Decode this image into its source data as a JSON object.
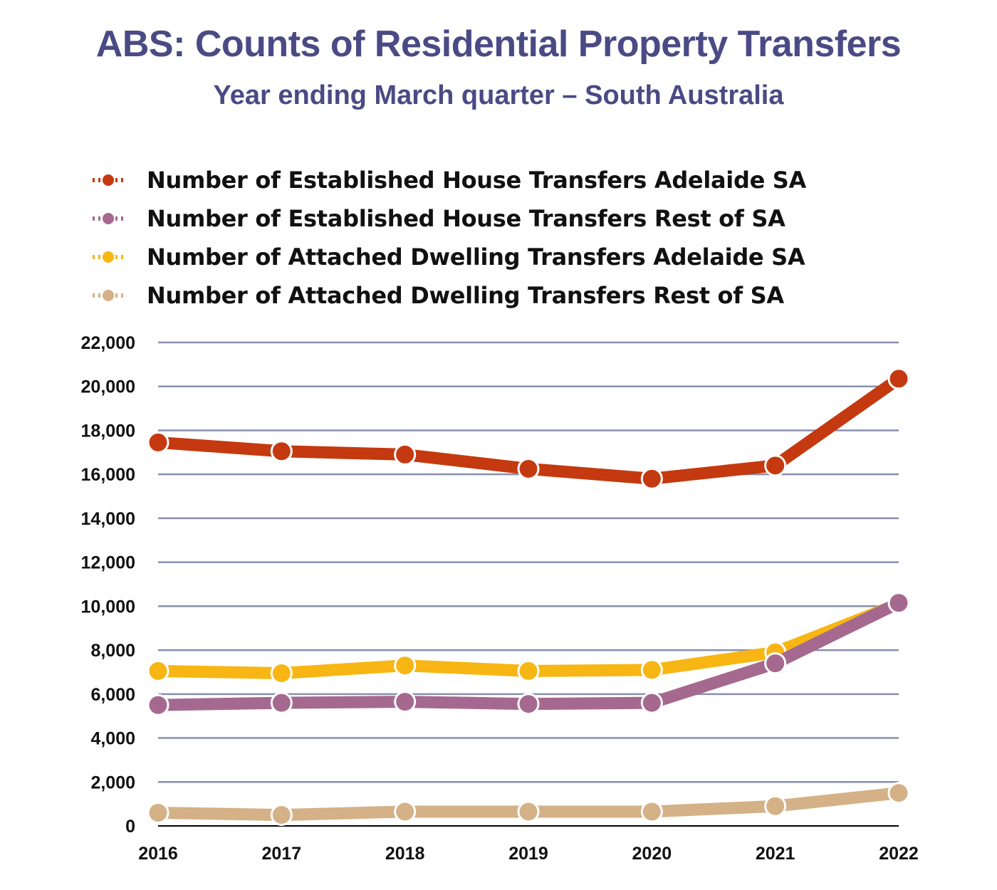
{
  "chart_data": {
    "type": "line",
    "title": "ABS: Counts of Residential Property Transfers",
    "subtitle": "Year ending March quarter – South Australia",
    "xlabel": "",
    "ylabel": "",
    "categories": [
      "2016",
      "2017",
      "2018",
      "2019",
      "2020",
      "2021",
      "2022"
    ],
    "ylim": [
      0,
      22000
    ],
    "yticks": [
      "0",
      "2,000",
      "4,000",
      "6,000",
      "8,000",
      "10,000",
      "12,000",
      "14,000",
      "16,000",
      "18,000",
      "20,000",
      "22,000"
    ],
    "grid": true,
    "legend_position": "top",
    "series": [
      {
        "name": "Number of Established House Transfers Adelaide SA",
        "color": "#c4390f",
        "values": [
          17450,
          17050,
          16900,
          16250,
          15800,
          16400,
          20350
        ]
      },
      {
        "name": "Number of Established House Transfers Rest of SA",
        "color": "#a5698f",
        "values": [
          5500,
          5600,
          5650,
          5550,
          5600,
          7400,
          10150
        ]
      },
      {
        "name": "Number of Attached Dwelling Transfers Adelaide SA",
        "color": "#f7b614",
        "values": [
          7050,
          6950,
          7300,
          7050,
          7100,
          7900,
          10100
        ]
      },
      {
        "name": "Number of Attached Dwelling Transfers Rest of SA",
        "color": "#d4b187",
        "values": [
          600,
          500,
          650,
          650,
          650,
          900,
          1500
        ]
      }
    ],
    "draw_order": [
      3,
      2,
      1,
      0
    ]
  }
}
